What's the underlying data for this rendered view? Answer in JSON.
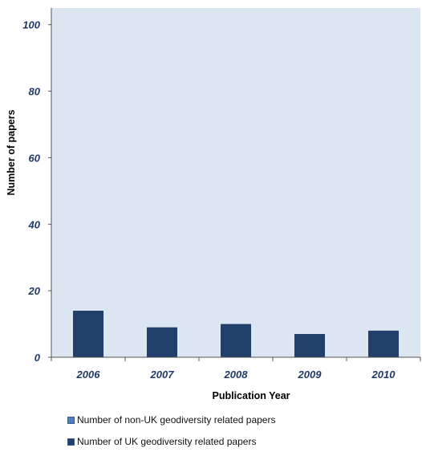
{
  "chart_data": {
    "type": "bar",
    "categories": [
      "2006",
      "2007",
      "2008",
      "2009",
      "2010"
    ],
    "series": [
      {
        "name": "Number of non-UK geodiversity related papers",
        "values": [
          0,
          0,
          0,
          0,
          0
        ],
        "color": "#4f81bd"
      },
      {
        "name": "Number of UK geodiversity related papers",
        "values": [
          14,
          9,
          10,
          7,
          8
        ],
        "color": "#213f6b"
      }
    ],
    "xlabel": "Publication Year",
    "ylabel": "Number of papers",
    "ylim": [
      0,
      105
    ],
    "yticks": [
      "0",
      "20",
      "40",
      "60",
      "80",
      "100"
    ],
    "plot_background": "#dce5f2",
    "grid": false,
    "legend_position": "bottom"
  }
}
